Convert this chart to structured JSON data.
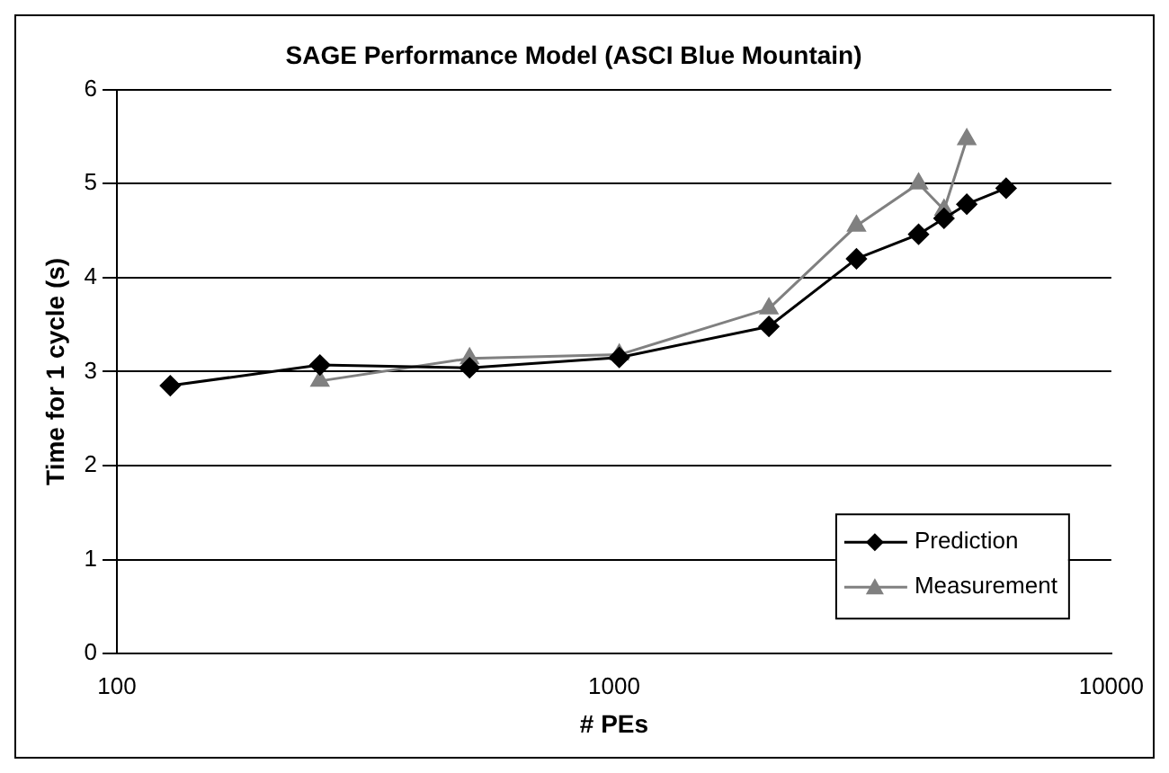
{
  "chart_data": {
    "type": "line",
    "title": "SAGE Performance Model (ASCI Blue Mountain)",
    "xlabel": "# PEs",
    "ylabel": "Time for 1 cycle (s)",
    "series": [
      {
        "name": "Prediction",
        "color": "#000000",
        "marker": "diamond",
        "x": [
          128,
          256,
          512,
          1024,
          2048,
          3072,
          4096,
          4608,
          5120,
          6144
        ],
        "values": [
          2.85,
          3.07,
          3.04,
          3.15,
          3.48,
          4.2,
          4.46,
          4.63,
          4.78,
          4.95
        ]
      },
      {
        "name": "Measurement",
        "color": "#808080",
        "marker": "triangle",
        "x": [
          256,
          512,
          1024,
          2048,
          3072,
          4096,
          4608,
          5120
        ],
        "values": [
          2.9,
          3.14,
          3.18,
          3.67,
          4.55,
          5.0,
          4.72,
          5.47
        ]
      }
    ],
    "log": "x",
    "xlim": [
      100,
      10000
    ],
    "xticks": [
      100,
      1000,
      10000
    ],
    "ylim": [
      0,
      6
    ],
    "yticks": [
      0,
      1,
      2,
      3,
      4,
      5,
      6
    ],
    "grid": "y",
    "legend": "bottom right"
  }
}
